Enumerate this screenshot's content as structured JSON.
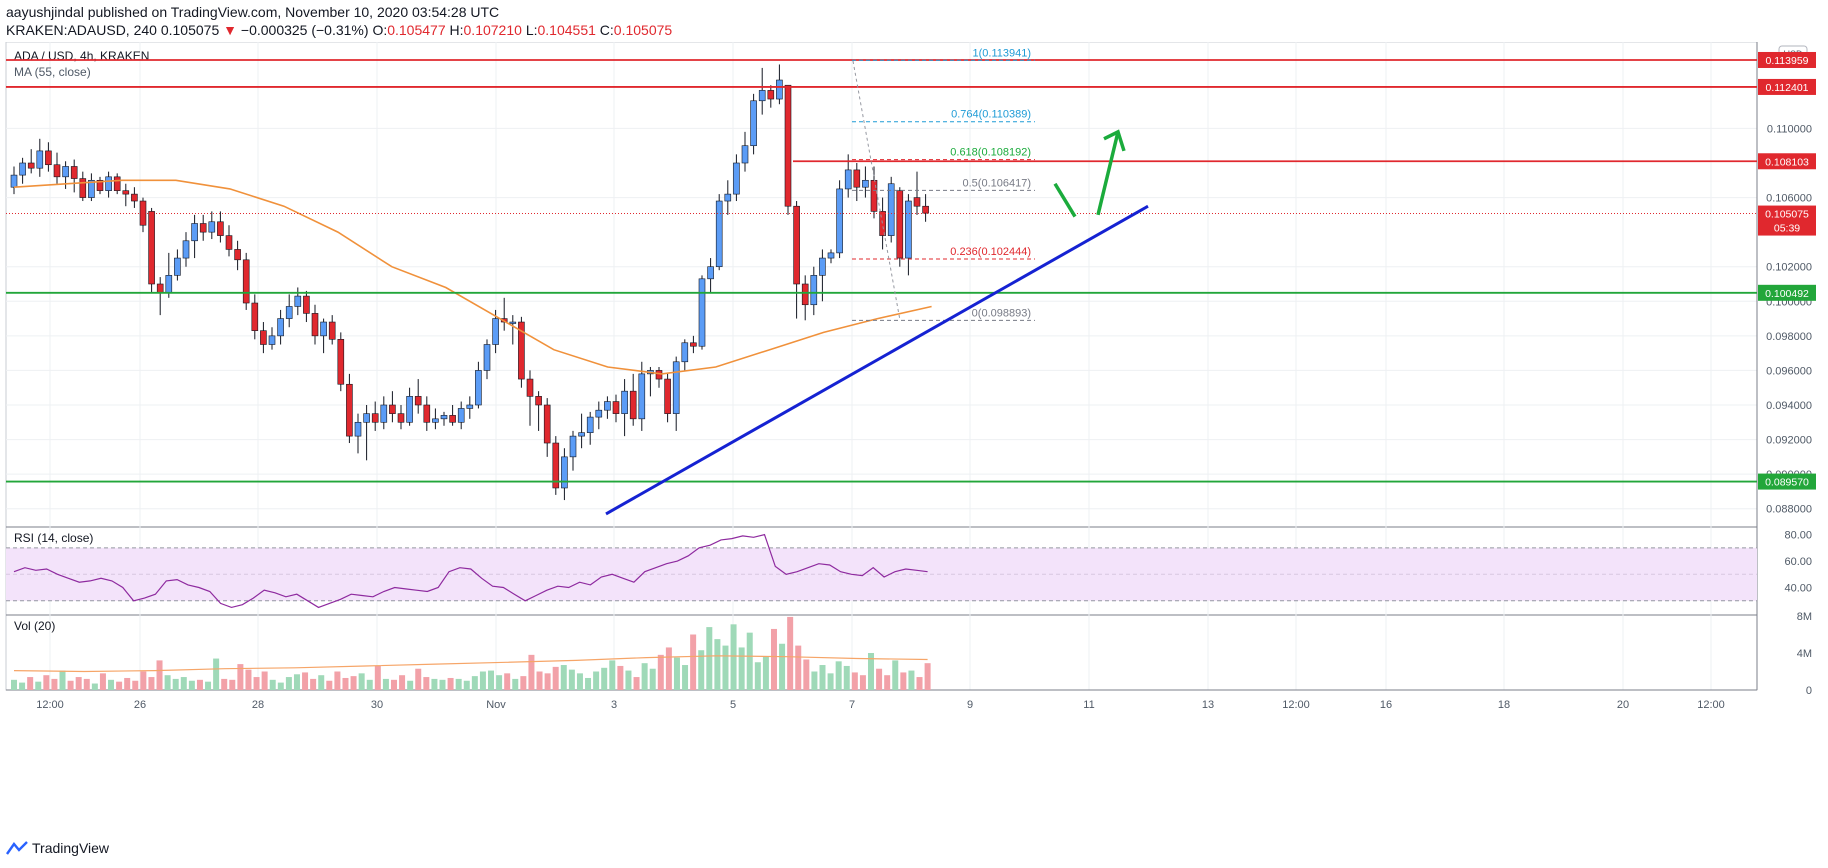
{
  "header": {
    "publish_line": "aayushjindal published on TradingView.com, November 10, 2020 03:54:28 UTC",
    "symbol": "KRAKEN:ADAUSD, 240",
    "last": "0.105075",
    "change_arrow": "▼",
    "change": "−0.000325 (−0.31%)",
    "o_label": "O:",
    "o_val": "0.105477",
    "h_label": "H:",
    "h_val": "0.107210",
    "l_label": "L:",
    "l_val": "0.104551",
    "c_label": "C:",
    "c_val": "0.105075"
  },
  "footer": {
    "brand": "TradingView",
    "logo_icon": "tradingview-logo-icon"
  },
  "colors": {
    "up": "#5b9cf6",
    "down": "#e0282e",
    "ma": "#f0913b",
    "trend": "#1522d2",
    "support": "#22a63a",
    "resistance": "#e0282e",
    "arrow": "#1bab3c",
    "rsi": "#8e2a9f",
    "rsi_band": "#f3e3fa",
    "vol_up": "#9fd9b8",
    "vol_down": "#f2a1a8",
    "vol_ma": "#f6a568",
    "axis_text": "#4f5966",
    "fib_text": "#1e9bd6"
  },
  "chart_data": [
    {
      "type": "candlestick",
      "title": "ADA / USD, 4h, KRAKEN",
      "indicator_label": "MA (55, close)",
      "currency": "USD",
      "ylim": [
        0.087,
        0.115
      ],
      "y_ticks": [
        "0.110000",
        "0.106000",
        "0.102000",
        "0.100000",
        "0.098000",
        "0.096000",
        "0.094000",
        "0.092000",
        "0.090000",
        "0.088000"
      ],
      "x_ticks": [
        "12:00",
        "26",
        "28",
        "30",
        "Nov",
        "3",
        "5",
        "7",
        "9",
        "11",
        "13",
        "12:00",
        "16",
        "18",
        "20",
        "12:00"
      ],
      "candles": [
        {
          "o": 0.1066,
          "h": 0.1078,
          "l": 0.1062,
          "c": 0.1073
        },
        {
          "o": 0.1073,
          "h": 0.1083,
          "l": 0.1068,
          "c": 0.108
        },
        {
          "o": 0.108,
          "h": 0.1088,
          "l": 0.1074,
          "c": 0.1077
        },
        {
          "o": 0.1077,
          "h": 0.1094,
          "l": 0.1072,
          "c": 0.1087
        },
        {
          "o": 0.1087,
          "h": 0.1092,
          "l": 0.1075,
          "c": 0.1079
        },
        {
          "o": 0.1079,
          "h": 0.1086,
          "l": 0.1068,
          "c": 0.1072
        },
        {
          "o": 0.1072,
          "h": 0.1081,
          "l": 0.1065,
          "c": 0.1078
        },
        {
          "o": 0.1078,
          "h": 0.1082,
          "l": 0.1063,
          "c": 0.1071
        },
        {
          "o": 0.1071,
          "h": 0.1075,
          "l": 0.1058,
          "c": 0.106
        },
        {
          "o": 0.106,
          "h": 0.1074,
          "l": 0.1058,
          "c": 0.107
        },
        {
          "o": 0.107,
          "h": 0.1072,
          "l": 0.1062,
          "c": 0.1064
        },
        {
          "o": 0.1064,
          "h": 0.1075,
          "l": 0.106,
          "c": 0.1072
        },
        {
          "o": 0.1072,
          "h": 0.1074,
          "l": 0.1062,
          "c": 0.1064
        },
        {
          "o": 0.1064,
          "h": 0.1068,
          "l": 0.1055,
          "c": 0.1062
        },
        {
          "o": 0.1062,
          "h": 0.1066,
          "l": 0.1054,
          "c": 0.1058
        },
        {
          "o": 0.1058,
          "h": 0.106,
          "l": 0.104,
          "c": 0.1044
        },
        {
          "o": 0.1052,
          "h": 0.1054,
          "l": 0.1005,
          "c": 0.101
        },
        {
          "o": 0.101,
          "h": 0.1014,
          "l": 0.0992,
          "c": 0.1005
        },
        {
          "o": 0.1005,
          "h": 0.1028,
          "l": 0.1002,
          "c": 0.1015
        },
        {
          "o": 0.1015,
          "h": 0.103,
          "l": 0.1012,
          "c": 0.1025
        },
        {
          "o": 0.1025,
          "h": 0.104,
          "l": 0.102,
          "c": 0.1035
        },
        {
          "o": 0.1035,
          "h": 0.105,
          "l": 0.1025,
          "c": 0.1045
        },
        {
          "o": 0.1045,
          "h": 0.105,
          "l": 0.1035,
          "c": 0.104
        },
        {
          "o": 0.104,
          "h": 0.1052,
          "l": 0.1036,
          "c": 0.1046
        },
        {
          "o": 0.1046,
          "h": 0.1052,
          "l": 0.1034,
          "c": 0.1038
        },
        {
          "o": 0.1038,
          "h": 0.1044,
          "l": 0.1026,
          "c": 0.103
        },
        {
          "o": 0.103,
          "h": 0.1035,
          "l": 0.1018,
          "c": 0.1024
        },
        {
          "o": 0.1024,
          "h": 0.1028,
          "l": 0.0995,
          "c": 0.0999
        },
        {
          "o": 0.0999,
          "h": 0.1004,
          "l": 0.0978,
          "c": 0.0983
        },
        {
          "o": 0.0983,
          "h": 0.0988,
          "l": 0.097,
          "c": 0.0975
        },
        {
          "o": 0.0975,
          "h": 0.0985,
          "l": 0.0972,
          "c": 0.098
        },
        {
          "o": 0.098,
          "h": 0.0995,
          "l": 0.0975,
          "c": 0.099
        },
        {
          "o": 0.099,
          "h": 0.1004,
          "l": 0.0985,
          "c": 0.0997
        },
        {
          "o": 0.0997,
          "h": 0.1008,
          "l": 0.0992,
          "c": 0.1003
        },
        {
          "o": 0.1003,
          "h": 0.1006,
          "l": 0.0988,
          "c": 0.0993
        },
        {
          "o": 0.0993,
          "h": 0.0998,
          "l": 0.0975,
          "c": 0.098
        },
        {
          "o": 0.098,
          "h": 0.099,
          "l": 0.097,
          "c": 0.0988
        },
        {
          "o": 0.0988,
          "h": 0.0992,
          "l": 0.0975,
          "c": 0.0978
        },
        {
          "o": 0.0978,
          "h": 0.0982,
          "l": 0.0948,
          "c": 0.0952
        },
        {
          "o": 0.0952,
          "h": 0.0958,
          "l": 0.0918,
          "c": 0.0922
        },
        {
          "o": 0.0922,
          "h": 0.0935,
          "l": 0.0912,
          "c": 0.093
        },
        {
          "o": 0.093,
          "h": 0.094,
          "l": 0.0908,
          "c": 0.0935
        },
        {
          "o": 0.0935,
          "h": 0.0942,
          "l": 0.0925,
          "c": 0.093
        },
        {
          "o": 0.093,
          "h": 0.0945,
          "l": 0.0926,
          "c": 0.094
        },
        {
          "o": 0.094,
          "h": 0.0948,
          "l": 0.093,
          "c": 0.0935
        },
        {
          "o": 0.0935,
          "h": 0.094,
          "l": 0.0926,
          "c": 0.093
        },
        {
          "o": 0.093,
          "h": 0.095,
          "l": 0.0928,
          "c": 0.0945
        },
        {
          "o": 0.0945,
          "h": 0.0955,
          "l": 0.0935,
          "c": 0.094
        },
        {
          "o": 0.094,
          "h": 0.0945,
          "l": 0.0925,
          "c": 0.093
        },
        {
          "o": 0.093,
          "h": 0.0938,
          "l": 0.0926,
          "c": 0.0932
        },
        {
          "o": 0.0932,
          "h": 0.0936,
          "l": 0.0928,
          "c": 0.0934
        },
        {
          "o": 0.0934,
          "h": 0.094,
          "l": 0.0928,
          "c": 0.093
        },
        {
          "o": 0.093,
          "h": 0.0942,
          "l": 0.0926,
          "c": 0.0938
        },
        {
          "o": 0.0938,
          "h": 0.0945,
          "l": 0.0932,
          "c": 0.094
        },
        {
          "o": 0.094,
          "h": 0.0965,
          "l": 0.0938,
          "c": 0.096
        },
        {
          "o": 0.096,
          "h": 0.0978,
          "l": 0.0955,
          "c": 0.0975
        },
        {
          "o": 0.0975,
          "h": 0.0995,
          "l": 0.097,
          "c": 0.099
        },
        {
          "o": 0.099,
          "h": 0.1002,
          "l": 0.0983,
          "c": 0.0988
        },
        {
          "o": 0.0988,
          "h": 0.0992,
          "l": 0.0975,
          "c": 0.0988
        },
        {
          "o": 0.0988,
          "h": 0.0991,
          "l": 0.095,
          "c": 0.0955
        },
        {
          "o": 0.0955,
          "h": 0.096,
          "l": 0.0928,
          "c": 0.0945
        },
        {
          "o": 0.0945,
          "h": 0.0948,
          "l": 0.0925,
          "c": 0.094
        },
        {
          "o": 0.094,
          "h": 0.0944,
          "l": 0.091,
          "c": 0.0918
        },
        {
          "o": 0.0918,
          "h": 0.0922,
          "l": 0.0888,
          "c": 0.0892
        },
        {
          "o": 0.0892,
          "h": 0.0915,
          "l": 0.0885,
          "c": 0.091
        },
        {
          "o": 0.091,
          "h": 0.0925,
          "l": 0.0902,
          "c": 0.0922
        },
        {
          "o": 0.0922,
          "h": 0.0935,
          "l": 0.0915,
          "c": 0.0924
        },
        {
          "o": 0.0924,
          "h": 0.0936,
          "l": 0.0917,
          "c": 0.0933
        },
        {
          "o": 0.0933,
          "h": 0.0942,
          "l": 0.0926,
          "c": 0.0937
        },
        {
          "o": 0.0937,
          "h": 0.0945,
          "l": 0.0932,
          "c": 0.0942
        },
        {
          "o": 0.0942,
          "h": 0.0946,
          "l": 0.093,
          "c": 0.0935
        },
        {
          "o": 0.0935,
          "h": 0.0955,
          "l": 0.0922,
          "c": 0.0948
        },
        {
          "o": 0.0948,
          "h": 0.0958,
          "l": 0.0928,
          "c": 0.0932
        },
        {
          "o": 0.0932,
          "h": 0.0965,
          "l": 0.0925,
          "c": 0.0958
        },
        {
          "o": 0.0958,
          "h": 0.0962,
          "l": 0.0945,
          "c": 0.096
        },
        {
          "o": 0.096,
          "h": 0.0962,
          "l": 0.095,
          "c": 0.0955
        },
        {
          "o": 0.0955,
          "h": 0.0958,
          "l": 0.093,
          "c": 0.0935
        },
        {
          "o": 0.0935,
          "h": 0.0968,
          "l": 0.0925,
          "c": 0.0965
        },
        {
          "o": 0.0965,
          "h": 0.0978,
          "l": 0.096,
          "c": 0.0976
        },
        {
          "o": 0.0976,
          "h": 0.098,
          "l": 0.097,
          "c": 0.0974
        },
        {
          "o": 0.0974,
          "h": 0.1015,
          "l": 0.0972,
          "c": 0.1013
        },
        {
          "o": 0.1013,
          "h": 0.1025,
          "l": 0.1005,
          "c": 0.102
        },
        {
          "o": 0.102,
          "h": 0.1062,
          "l": 0.1018,
          "c": 0.1058
        },
        {
          "o": 0.1058,
          "h": 0.107,
          "l": 0.105,
          "c": 0.1062
        },
        {
          "o": 0.1062,
          "h": 0.1085,
          "l": 0.1058,
          "c": 0.108
        },
        {
          "o": 0.108,
          "h": 0.1098,
          "l": 0.1075,
          "c": 0.109
        },
        {
          "o": 0.109,
          "h": 0.112,
          "l": 0.1085,
          "c": 0.1116
        },
        {
          "o": 0.1116,
          "h": 0.1135,
          "l": 0.1108,
          "c": 0.1122
        },
        {
          "o": 0.1122,
          "h": 0.1125,
          "l": 0.1112,
          "c": 0.1117
        },
        {
          "o": 0.1117,
          "h": 0.1137,
          "l": 0.1114,
          "c": 0.1128
        },
        {
          "o": 0.1125,
          "h": 0.1125,
          "l": 0.105,
          "c": 0.1055
        },
        {
          "o": 0.1055,
          "h": 0.1058,
          "l": 0.099,
          "c": 0.101
        },
        {
          "o": 0.101,
          "h": 0.1015,
          "l": 0.0989,
          "c": 0.0998
        },
        {
          "o": 0.0998,
          "h": 0.102,
          "l": 0.0992,
          "c": 0.1015
        },
        {
          "o": 0.1015,
          "h": 0.103,
          "l": 0.1,
          "c": 0.1025
        },
        {
          "o": 0.1025,
          "h": 0.103,
          "l": 0.1022,
          "c": 0.1028
        },
        {
          "o": 0.1028,
          "h": 0.107,
          "l": 0.1025,
          "c": 0.1065
        },
        {
          "o": 0.1065,
          "h": 0.1085,
          "l": 0.106,
          "c": 0.1076
        },
        {
          "o": 0.1076,
          "h": 0.108,
          "l": 0.1058,
          "c": 0.1066
        },
        {
          "o": 0.1066,
          "h": 0.1078,
          "l": 0.106,
          "c": 0.107
        },
        {
          "o": 0.107,
          "h": 0.1078,
          "l": 0.1048,
          "c": 0.1052
        },
        {
          "o": 0.1052,
          "h": 0.106,
          "l": 0.103,
          "c": 0.1038
        },
        {
          "o": 0.1038,
          "h": 0.1072,
          "l": 0.1034,
          "c": 0.1068
        },
        {
          "o": 0.1064,
          "h": 0.1066,
          "l": 0.102,
          "c": 0.1025
        },
        {
          "o": 0.1025,
          "h": 0.1062,
          "l": 0.1015,
          "c": 0.1058
        },
        {
          "o": 0.106,
          "h": 0.1075,
          "l": 0.105,
          "c": 0.1055
        },
        {
          "o": 0.1055,
          "h": 0.1062,
          "l": 0.1046,
          "c": 0.1051
        }
      ],
      "ma55": [
        0.1066,
        0.1068,
        0.107,
        0.107,
        0.1065,
        0.1055,
        0.104,
        0.102,
        0.1008,
        0.099,
        0.0972,
        0.0962,
        0.0958,
        0.0962,
        0.0972,
        0.0982,
        0.099,
        0.0997
      ],
      "levels": [
        {
          "label": "0.113959",
          "value": 0.11396,
          "color": "#e0282e"
        },
        {
          "label": "0.112401",
          "value": 0.1124,
          "color": "#e0282e"
        },
        {
          "label": "0.108103",
          "value": 0.1081,
          "color": "#e0282e"
        },
        {
          "label": "0.100492",
          "value": 0.10049,
          "color": "#22a63a"
        },
        {
          "label": "0.089570",
          "value": 0.08957,
          "color": "#22a63a"
        }
      ],
      "current_price": {
        "label": "0.105075",
        "value": 0.105075,
        "countdown": "05:39"
      },
      "fibonacci": [
        {
          "ratio": "1",
          "label": "0.113941",
          "value": 0.113941
        },
        {
          "ratio": "0.764",
          "label": "0.110389",
          "value": 0.110389
        },
        {
          "ratio": "0.618",
          "label": "0.108192",
          "value": 0.108192
        },
        {
          "ratio": "0.5",
          "label": "0.106417",
          "value": 0.106417
        },
        {
          "ratio": "0.236",
          "label": "0.102444",
          "value": 0.102444
        },
        {
          "ratio": "0",
          "label": "0.098893",
          "value": 0.098893
        }
      ]
    },
    {
      "type": "line",
      "title": "RSI (14, close)",
      "ylim": [
        20,
        85
      ],
      "y_ticks": [
        "80.00",
        "60.00",
        "40.00"
      ],
      "band": [
        30,
        70
      ],
      "values": [
        52,
        55,
        53,
        54,
        50,
        47,
        44,
        45,
        47,
        45,
        40,
        30,
        32,
        35,
        45,
        46,
        42,
        40,
        37,
        28,
        25,
        27,
        32,
        38,
        36,
        33,
        35,
        30,
        25,
        28,
        31,
        35,
        34,
        33,
        37,
        40,
        39,
        38,
        37,
        40,
        52,
        55,
        54,
        47,
        41,
        40,
        35,
        30,
        34,
        38,
        41,
        40,
        44,
        42,
        48,
        50,
        47,
        44,
        52,
        55,
        58,
        60,
        64,
        70,
        72,
        76,
        77,
        79,
        78,
        80,
        56,
        50,
        52,
        55,
        58,
        57,
        52,
        50,
        49,
        55,
        48,
        52,
        54,
        53,
        52
      ]
    },
    {
      "type": "bar",
      "title": "Vol (20)",
      "ylim": [
        0,
        8
      ],
      "y_ticks": [
        "8M",
        "4M",
        "0"
      ],
      "values": [
        1.1,
        0.8,
        1.4,
        0.9,
        1.6,
        1.2,
        2.1,
        1.0,
        1.4,
        1.2,
        0.7,
        1.8,
        1.1,
        0.9,
        1.3,
        1.0,
        2.0,
        1.4,
        3.2,
        1.6,
        1.2,
        1.4,
        1.0,
        1.1,
        0.9,
        3.4,
        1.2,
        1.1,
        2.8,
        2.2,
        1.4,
        2.0,
        1.1,
        0.8,
        1.4,
        1.7,
        1.9,
        1.2,
        1.6,
        1.0,
        2.0,
        1.3,
        1.5,
        1.8,
        1.1,
        2.6,
        1.2,
        1.1,
        1.6,
        1.0,
        2.3,
        1.4,
        1.2,
        1.1,
        1.3,
        1.2,
        1.0,
        1.5,
        2.0,
        2.1,
        1.6,
        1.8,
        1.2,
        1.5,
        3.8,
        2.0,
        1.8,
        2.5,
        2.7,
        2.2,
        1.8,
        1.3,
        2.0,
        2.4,
        3.2,
        2.6,
        2.1,
        1.4,
        2.9,
        2.3,
        3.8,
        4.6,
        3.5,
        2.7,
        6.0,
        4.3,
        6.8,
        5.5,
        4.8,
        7.1,
        4.6,
        6.2,
        3.0,
        3.6,
        6.6,
        5.0,
        7.9,
        4.8,
        3.3,
        2.0,
        2.7,
        1.8,
        3.1,
        2.6,
        1.9,
        1.6,
        4.0,
        2.3,
        1.6,
        3.2,
        1.9,
        2.1,
        1.4,
        2.9
      ],
      "vol_ma": [
        2.1,
        2.0,
        2.1,
        2.3,
        2.4,
        2.6,
        2.8,
        3.0,
        3.2,
        3.5,
        3.7,
        3.6,
        3.4,
        3.3
      ]
    }
  ]
}
